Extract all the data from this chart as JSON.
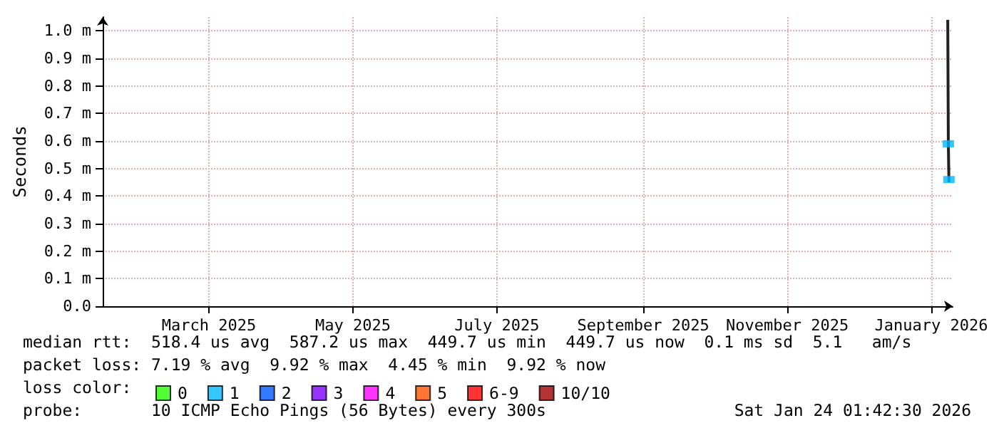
{
  "chart_data": {
    "type": "line",
    "ylabel": "Seconds",
    "legend_title": "loss color:",
    "xlim": [
      "2025-01-29",
      "2026-01-24T01:42"
    ],
    "xticks": [
      {
        "value": "2025-03-15",
        "label": "March 2025"
      },
      {
        "value": "2025-05-15",
        "label": "May 2025"
      },
      {
        "value": "2025-07-15",
        "label": "July 2025"
      },
      {
        "value": "2025-09-15",
        "label": "September 2025"
      },
      {
        "value": "2025-11-15",
        "label": "November 2025"
      },
      {
        "value": "2026-01-15",
        "label": "January 2026"
      }
    ],
    "ylim": [
      0,
      1.05
    ],
    "yticks": [
      {
        "value": 0,
        "label": "0.0"
      },
      {
        "value": 0.1,
        "label": "0.1 m"
      },
      {
        "value": 0.2,
        "label": "0.2 m"
      },
      {
        "value": 0.3,
        "label": "0.3 m"
      },
      {
        "value": 0.4,
        "label": "0.4 m"
      },
      {
        "value": 0.5,
        "label": "0.5 m"
      },
      {
        "value": 0.6,
        "label": "0.6 m"
      },
      {
        "value": 0.7,
        "label": "0.7 m"
      },
      {
        "value": 0.8,
        "label": "0.8 m"
      },
      {
        "value": 0.9,
        "label": "0.9 m"
      },
      {
        "value": 1.0,
        "label": "1.0 m"
      }
    ],
    "grid": true,
    "legend": "bottom",
    "series": [
      {
        "color": "#202020",
        "x": [
          "2026-01-22T00:00",
          "2026-01-22T06:00",
          "2026-01-22T12:00"
        ],
        "values": [
          1.04,
          0.59,
          0.45
        ]
      },
      {
        "type": "scatter",
        "name": "0",
        "color": "#26ff00"
      },
      {
        "type": "scatter",
        "name": "1",
        "color": "#00b8ff",
        "x": [
          "2026-01-22T06:00",
          "2026-01-22T12:00"
        ],
        "values": [
          0.59,
          0.46
        ]
      },
      {
        "type": "scatter",
        "name": "2",
        "color": "#0059ff"
      },
      {
        "type": "scatter",
        "name": "3",
        "color": "#7e00ff"
      },
      {
        "type": "scatter",
        "name": "4",
        "color": "#ff00ff"
      },
      {
        "type": "scatter",
        "name": "5",
        "color": "#ff5500"
      },
      {
        "type": "scatter",
        "name": "6-9",
        "color": "#ff0000"
      },
      {
        "type": "scatter",
        "name": "10/10",
        "color": "#a10000"
      }
    ],
    "annotations": [
      "median rtt:  518.4 us avg  587.2 us max  449.7 us min  449.7 us now  0.1 ms sd  5.1   am/s",
      "packet loss: 7.19 % avg  9.92 % max  4.45 % min  9.92 % now",
      "probe:       10 ICMP Echo Pings (56 Bytes) every 300s",
      "Sat Jan 24 01:42:30 2026"
    ]
  }
}
